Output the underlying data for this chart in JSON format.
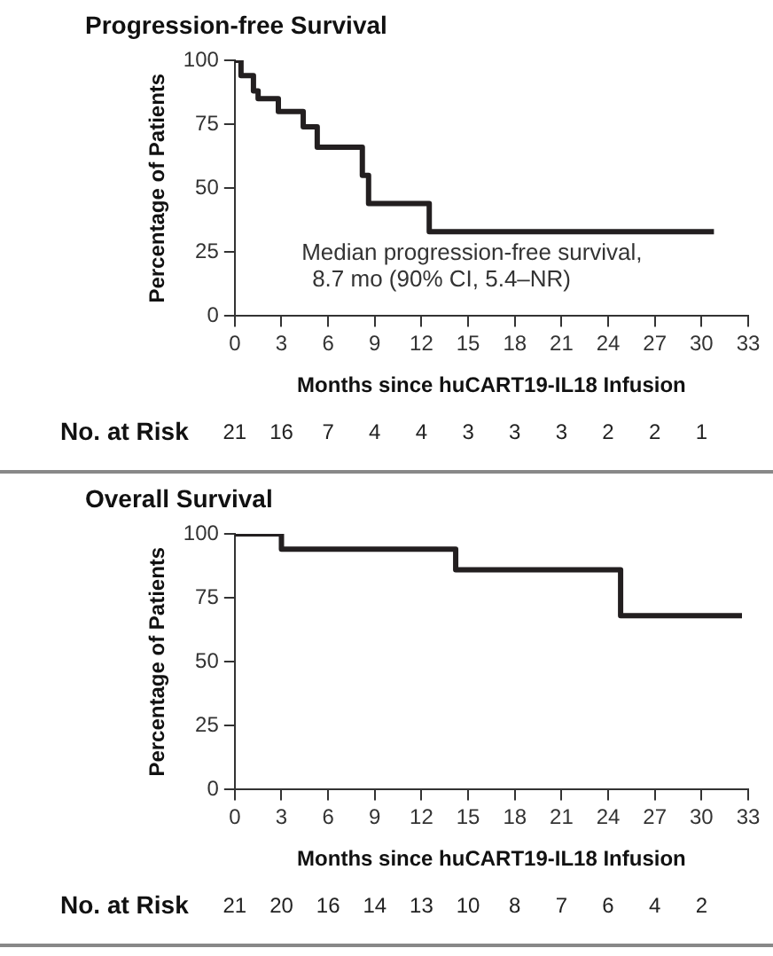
{
  "chart_data": [
    {
      "type": "step",
      "title": "Progression-free Survival",
      "xlabel": "Months since huCART19-IL18 Infusion",
      "ylabel": "Percentage of Patients",
      "xlim": [
        0,
        33
      ],
      "xticks": [
        0,
        3,
        6,
        9,
        12,
        15,
        18,
        21,
        24,
        27,
        30,
        33
      ],
      "ylim": [
        0,
        100
      ],
      "yticks": [
        0,
        25,
        50,
        75,
        100
      ],
      "marker": "none",
      "line_style": "solid",
      "series": [
        {
          "color": "#231f20",
          "x": [
            0,
            0.4,
            1.2,
            1.5,
            2.8,
            4.4,
            5.3,
            8.2,
            8.6,
            12.5,
            30.8
          ],
          "values": [
            100,
            94,
            88,
            85,
            80,
            74,
            66,
            55,
            44,
            33,
            33
          ]
        }
      ],
      "annotations": [
        "Median progression-free survival, 8.7 mo (90% CI, 5.4–NR)",
        "No. at Risk",
        "21 16 7 4 4 3 3 3 2 2 1"
      ]
    },
    {
      "type": "step",
      "title": "Overall Survival",
      "xlabel": "Months since huCART19-IL18 Infusion",
      "ylabel": "Percentage of Patients",
      "xlim": [
        0,
        33
      ],
      "xticks": [
        0,
        3,
        6,
        9,
        12,
        15,
        18,
        21,
        24,
        27,
        30,
        33
      ],
      "ylim": [
        0,
        100
      ],
      "yticks": [
        0,
        25,
        50,
        75,
        100
      ],
      "marker": "none",
      "line_style": "solid",
      "series": [
        {
          "color": "#231f20",
          "x": [
            0,
            3,
            14.2,
            24.8,
            32.6
          ],
          "values": [
            100,
            94,
            86,
            68,
            68
          ]
        }
      ],
      "annotations": [
        "No. at Risk",
        "21 20 16 14 13 10 8 7 6 4 2"
      ]
    }
  ]
}
